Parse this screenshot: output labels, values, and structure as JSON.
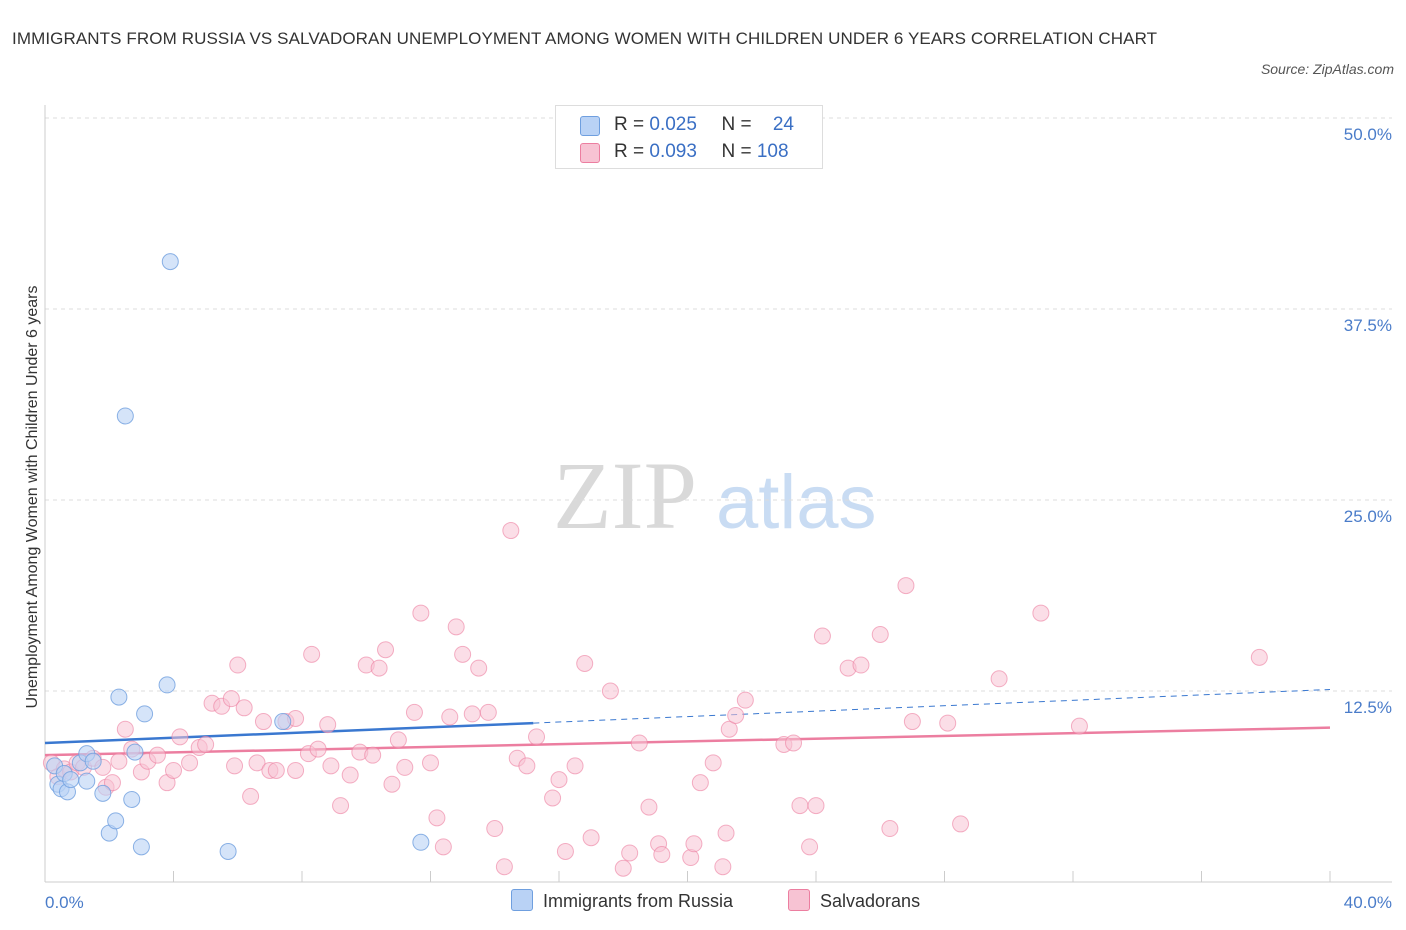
{
  "title": "IMMIGRANTS FROM RUSSIA VS SALVADORAN UNEMPLOYMENT AMONG WOMEN WITH CHILDREN UNDER 6 YEARS CORRELATION CHART",
  "source": "Source: ZipAtlas.com",
  "watermark": {
    "zip": "ZIP",
    "atlas": "atlas"
  },
  "colors": {
    "russia": "#6f9fdf",
    "russia_fill": "#b9d2f5",
    "salvadoran": "#ec7ea0",
    "salvadoran_fill": "#f7c3d3",
    "tick": "#4a7cc9"
  },
  "legend": {
    "russia": {
      "r_label": "R = ",
      "r_value": "0.025",
      "n_label": "N = ",
      "n_value": "24"
    },
    "salvadoran": {
      "r_label": "R = ",
      "r_value": "0.093",
      "n_label": "N = ",
      "n_value": "108"
    }
  },
  "chart_data": {
    "type": "scatter",
    "title": "IMMIGRANTS FROM RUSSIA VS SALVADORAN UNEMPLOYMENT AMONG WOMEN WITH CHILDREN UNDER 6 YEARS CORRELATION CHART",
    "ylabel": "Unemployment Among Women with Children Under 6 years",
    "xlim": [
      0,
      40
    ],
    "ylim": [
      0,
      50
    ],
    "x_tick_labels": [
      "0.0%",
      "40.0%"
    ],
    "y_ticks": [
      12.5,
      25,
      37.5,
      50
    ],
    "y_tick_labels": [
      "12.5%",
      "25.0%",
      "37.5%",
      "50.0%"
    ],
    "grid": "horizontal dashed",
    "legend_position": "top-center",
    "series": [
      {
        "name": "Immigrants from Russia",
        "trend": {
          "x": [
            0,
            15.2
          ],
          "y": [
            9.1,
            10.4
          ],
          "dashed_to": [
            40,
            12.6
          ]
        },
        "points": [
          [
            0.3,
            7.6
          ],
          [
            0.4,
            6.4
          ],
          [
            0.5,
            6.1
          ],
          [
            0.6,
            7.1
          ],
          [
            0.7,
            5.9
          ],
          [
            0.8,
            6.7
          ],
          [
            1.1,
            7.8
          ],
          [
            1.3,
            8.4
          ],
          [
            1.5,
            7.9
          ],
          [
            1.3,
            6.6
          ],
          [
            1.8,
            5.8
          ],
          [
            2.0,
            3.2
          ],
          [
            2.2,
            4.0
          ],
          [
            2.3,
            12.1
          ],
          [
            2.7,
            5.4
          ],
          [
            2.8,
            8.5
          ],
          [
            3.0,
            2.3
          ],
          [
            3.1,
            11.0
          ],
          [
            3.8,
            12.9
          ],
          [
            3.9,
            40.6
          ],
          [
            2.5,
            30.5
          ],
          [
            5.7,
            2.0
          ],
          [
            7.4,
            10.5
          ],
          [
            11.7,
            2.6
          ]
        ]
      },
      {
        "name": "Salvadorans",
        "trend": {
          "x": [
            0,
            40
          ],
          "y": [
            8.3,
            10.1
          ]
        },
        "points": [
          [
            0.2,
            7.8
          ],
          [
            0.4,
            6.9
          ],
          [
            0.6,
            7.4
          ],
          [
            0.8,
            7.2
          ],
          [
            1.0,
            7.8
          ],
          [
            1.2,
            7.5
          ],
          [
            1.5,
            8.1
          ],
          [
            1.8,
            7.5
          ],
          [
            1.9,
            6.2
          ],
          [
            2.1,
            6.5
          ],
          [
            2.3,
            7.9
          ],
          [
            2.5,
            10.0
          ],
          [
            2.7,
            8.7
          ],
          [
            3.0,
            7.2
          ],
          [
            3.2,
            7.9
          ],
          [
            3.5,
            8.3
          ],
          [
            3.8,
            6.5
          ],
          [
            4.0,
            7.3
          ],
          [
            4.2,
            9.5
          ],
          [
            4.5,
            7.8
          ],
          [
            4.8,
            8.8
          ],
          [
            5.0,
            9.0
          ],
          [
            5.2,
            11.7
          ],
          [
            5.5,
            11.5
          ],
          [
            5.8,
            12.0
          ],
          [
            5.9,
            7.6
          ],
          [
            6.0,
            14.2
          ],
          [
            6.2,
            11.4
          ],
          [
            6.4,
            5.6
          ],
          [
            6.6,
            7.8
          ],
          [
            6.8,
            10.5
          ],
          [
            7.0,
            7.3
          ],
          [
            7.2,
            7.3
          ],
          [
            7.5,
            10.5
          ],
          [
            7.8,
            10.7
          ],
          [
            7.8,
            7.3
          ],
          [
            8.2,
            8.4
          ],
          [
            8.3,
            14.9
          ],
          [
            8.5,
            8.7
          ],
          [
            8.8,
            10.3
          ],
          [
            8.9,
            7.6
          ],
          [
            9.2,
            5.0
          ],
          [
            9.5,
            7.0
          ],
          [
            9.8,
            8.5
          ],
          [
            10.0,
            14.2
          ],
          [
            10.2,
            8.3
          ],
          [
            10.4,
            14.0
          ],
          [
            10.6,
            15.2
          ],
          [
            10.8,
            6.4
          ],
          [
            11.0,
            9.3
          ],
          [
            11.2,
            7.5
          ],
          [
            11.5,
            11.1
          ],
          [
            11.7,
            17.6
          ],
          [
            12.0,
            7.8
          ],
          [
            12.2,
            4.2
          ],
          [
            12.4,
            2.3
          ],
          [
            12.6,
            10.8
          ],
          [
            12.8,
            16.7
          ],
          [
            13.0,
            14.9
          ],
          [
            13.3,
            11.0
          ],
          [
            13.5,
            14.0
          ],
          [
            13.8,
            11.1
          ],
          [
            14.0,
            3.5
          ],
          [
            14.3,
            1.0
          ],
          [
            14.5,
            23.0
          ],
          [
            14.7,
            8.1
          ],
          [
            15.0,
            7.6
          ],
          [
            15.3,
            9.5
          ],
          [
            15.8,
            5.5
          ],
          [
            16.0,
            6.7
          ],
          [
            16.2,
            2.0
          ],
          [
            16.5,
            7.6
          ],
          [
            16.8,
            14.3
          ],
          [
            17.0,
            2.9
          ],
          [
            17.6,
            12.5
          ],
          [
            18.0,
            0.9
          ],
          [
            18.2,
            1.9
          ],
          [
            18.5,
            9.1
          ],
          [
            18.8,
            4.9
          ],
          [
            19.1,
            2.5
          ],
          [
            19.2,
            1.8
          ],
          [
            20.1,
            1.6
          ],
          [
            20.2,
            2.5
          ],
          [
            20.4,
            6.5
          ],
          [
            20.8,
            7.8
          ],
          [
            21.1,
            1.0
          ],
          [
            21.2,
            3.2
          ],
          [
            21.3,
            10.0
          ],
          [
            21.5,
            10.9
          ],
          [
            21.8,
            11.9
          ],
          [
            23.0,
            9.0
          ],
          [
            23.3,
            9.1
          ],
          [
            23.5,
            5.0
          ],
          [
            23.8,
            2.3
          ],
          [
            24.0,
            5.0
          ],
          [
            24.2,
            16.1
          ],
          [
            25.0,
            14.0
          ],
          [
            25.4,
            14.2
          ],
          [
            26.0,
            16.2
          ],
          [
            26.3,
            3.5
          ],
          [
            26.8,
            19.4
          ],
          [
            27.0,
            10.5
          ],
          [
            28.1,
            10.4
          ],
          [
            28.5,
            3.8
          ],
          [
            29.7,
            13.3
          ],
          [
            31.0,
            17.6
          ],
          [
            32.2,
            10.2
          ],
          [
            37.8,
            14.7
          ]
        ]
      }
    ]
  },
  "bottom_legend": {
    "russia": "Immigrants from Russia",
    "salvadoran": "Salvadorans"
  }
}
